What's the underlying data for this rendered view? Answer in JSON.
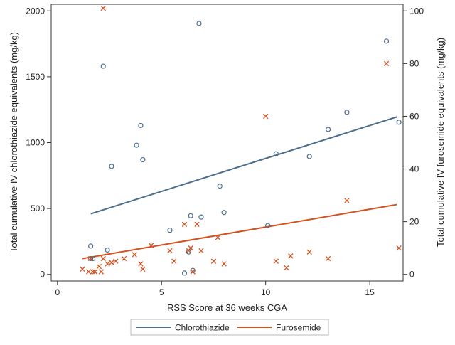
{
  "chart_data": {
    "type": "scatter",
    "xlabel": "RSS Score at 36 weeks CGA",
    "ylabel_left": "Total cumulative IV chlorothiazide equivalents (mg/kg)",
    "ylabel_right": "Total cumulative IV furosemide equivalents (mg/kg)",
    "xlim": [
      -0.3,
      16.6
    ],
    "ylim_left": [
      -50,
      2050
    ],
    "ylim_right": [
      -2.5,
      102.5
    ],
    "x_ticks": [
      0,
      5,
      10,
      15
    ],
    "y_left_ticks": [
      0,
      500,
      1000,
      1500,
      2000
    ],
    "y_right_ticks": [
      0,
      20,
      40,
      60,
      80,
      100
    ],
    "grid": false,
    "legend_position": "bottom",
    "series": [
      {
        "name": "Chlorothiazide",
        "axis": "left",
        "marker": "circle",
        "color": "#4e6d8c",
        "points": [
          [
            1.6,
            215
          ],
          [
            1.6,
            120
          ],
          [
            1.7,
            120
          ],
          [
            2.2,
            1580
          ],
          [
            2.4,
            185
          ],
          [
            2.6,
            820
          ],
          [
            3.8,
            980
          ],
          [
            4.0,
            1130
          ],
          [
            4.1,
            870
          ],
          [
            5.4,
            335
          ],
          [
            6.1,
            10
          ],
          [
            6.3,
            170
          ],
          [
            6.4,
            445
          ],
          [
            6.5,
            30
          ],
          [
            6.8,
            1905
          ],
          [
            6.9,
            435
          ],
          [
            7.8,
            670
          ],
          [
            8.0,
            470
          ],
          [
            10.1,
            370
          ],
          [
            10.5,
            915
          ],
          [
            12.1,
            895
          ],
          [
            13.0,
            1100
          ],
          [
            13.9,
            1230
          ],
          [
            15.8,
            1770
          ],
          [
            16.4,
            1155
          ]
        ],
        "fit_line": [
          [
            1.6,
            460
          ],
          [
            16.3,
            1195
          ]
        ]
      },
      {
        "name": "Furosemide",
        "axis": "right",
        "marker": "x",
        "color": "#d4501e",
        "points": [
          [
            1.2,
            2
          ],
          [
            1.5,
            1
          ],
          [
            1.6,
            6
          ],
          [
            1.7,
            1
          ],
          [
            1.8,
            1
          ],
          [
            2.0,
            3
          ],
          [
            2.1,
            1
          ],
          [
            2.2,
            6
          ],
          [
            2.4,
            4
          ],
          [
            2.6,
            4.5
          ],
          [
            2.8,
            5
          ],
          [
            3.2,
            6
          ],
          [
            3.7,
            7.5
          ],
          [
            4.0,
            4
          ],
          [
            4.1,
            2
          ],
          [
            4.5,
            11
          ],
          [
            5.4,
            9
          ],
          [
            5.6,
            5
          ],
          [
            6.1,
            19
          ],
          [
            6.3,
            9
          ],
          [
            6.5,
            1
          ],
          [
            6.4,
            10
          ],
          [
            6.7,
            19
          ],
          [
            6.9,
            9
          ],
          [
            7.5,
            5
          ],
          [
            7.7,
            14
          ],
          [
            8.0,
            4
          ],
          [
            10.0,
            60
          ],
          [
            10.5,
            5
          ],
          [
            11.0,
            2.5
          ],
          [
            11.2,
            7
          ],
          [
            12.1,
            8.5
          ],
          [
            13.0,
            6
          ],
          [
            13.9,
            28
          ],
          [
            15.8,
            80
          ],
          [
            16.4,
            10
          ],
          [
            2.2,
            101
          ]
        ],
        "fit_line": [
          [
            1.2,
            6
          ],
          [
            16.3,
            26.5
          ]
        ]
      }
    ]
  }
}
